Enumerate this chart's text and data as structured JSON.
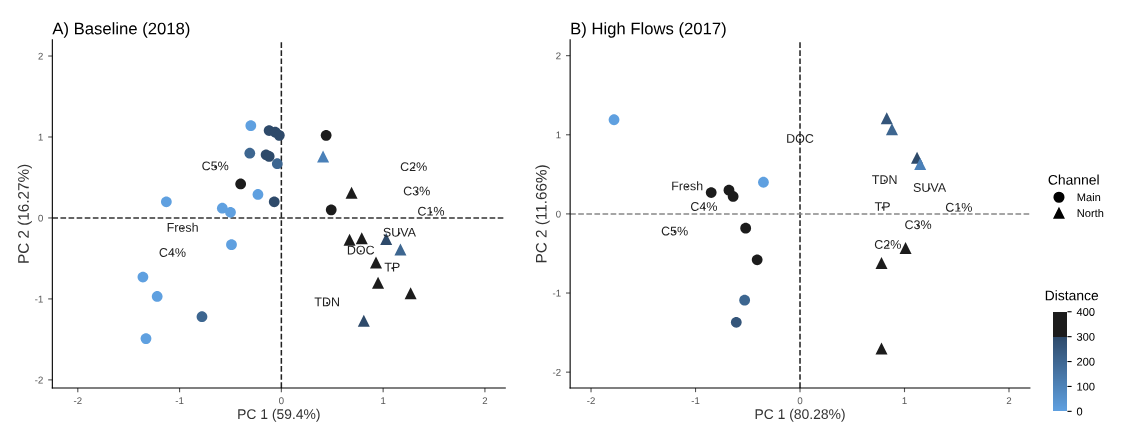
{
  "chart_data": [
    {
      "type": "scatter",
      "title": "A) Baseline (2018)",
      "xlabel": "PC 1 (59.4%)",
      "ylabel": "PC 2 (16.27%)",
      "xlim": [
        -2.25,
        2.2
      ],
      "ylim": [
        -2.1,
        2.2
      ],
      "xticks": [
        -2,
        -1,
        0,
        1,
        2
      ],
      "yticks": [
        -2,
        -1,
        0,
        1,
        2
      ],
      "grid": false,
      "series": [
        {
          "marker": "circle",
          "x": [
            -0.3,
            -0.12,
            -0.06,
            -0.02,
            -0.31,
            -0.15,
            -0.12,
            -0.04,
            -0.4,
            -0.23,
            -0.07,
            -1.13,
            -0.58,
            -0.5,
            -0.49,
            -1.36,
            -1.22,
            -0.78,
            -1.33,
            0.44,
            0.49
          ],
          "values": [
            1.14,
            1.08,
            1.06,
            1.02,
            0.8,
            0.78,
            0.76,
            0.67,
            0.42,
            0.29,
            0.2,
            0.2,
            0.12,
            0.07,
            -0.33,
            -0.73,
            -0.97,
            -1.22,
            -1.49,
            1.02,
            0.1
          ],
          "colors": [
            "#5fa0e0",
            "#2e4a6a",
            "#2e4a6a",
            "#2e4a6a",
            "#3d6690",
            "#2e4a6a",
            "#2e4a6a",
            "#3d6690",
            "#1c1c1c",
            "#5fa0e0",
            "#2e4a6a",
            "#5fa0e0",
            "#5fa0e0",
            "#5fa0e0",
            "#5fa0e0",
            "#5fa0e0",
            "#5fa0e0",
            "#3d6690",
            "#5fa0e0",
            "#1c1c1c",
            "#1c1c1c"
          ]
        },
        {
          "marker": "triangle",
          "x": [
            0.41,
            0.69,
            0.67,
            0.79,
            1.03,
            1.17,
            0.93,
            0.95,
            1.27,
            0.81
          ],
          "values": [
            0.76,
            0.31,
            -0.27,
            -0.25,
            -0.26,
            -0.39,
            -0.55,
            -0.8,
            -0.93,
            -1.27
          ],
          "colors": [
            "#4a80b8",
            "#1c1c1c",
            "#1c1c1c",
            "#1c1c1c",
            "#2e4a6a",
            "#3d6690",
            "#1c1c1c",
            "#1c1c1c",
            "#1c1c1c",
            "#2e4a6a"
          ]
        },
        {
          "marker": "none",
          "x": [
            -0.65,
            1.3,
            1.33,
            1.47,
            -0.97,
            1.16,
            -1.07,
            0.78,
            1.09,
            0.45
          ],
          "values": [
            0.63,
            0.62,
            0.32,
            0.07,
            -0.13,
            -0.19,
            -0.44,
            -0.41,
            -0.62,
            -1.05
          ],
          "value_labels": [
            "C5%",
            "C2%",
            "C3%",
            "C1%",
            "Fresh",
            "SUVA",
            "C4%",
            "DOC",
            "TP",
            "TDN"
          ]
        }
      ],
      "ref_lines": [
        {
          "axis": "x",
          "value": 0,
          "color": "#222222",
          "line_style": "dashed"
        },
        {
          "axis": "y",
          "value": 0,
          "color": "#333333",
          "line_style": "dashed"
        }
      ]
    },
    {
      "type": "scatter",
      "title": "B) High Flows (2017)",
      "xlabel": "PC 1 (80.28%)",
      "ylabel": "PC 2 (11.66%)",
      "xlim": [
        -2.2,
        2.2
      ],
      "ylim": [
        -2.2,
        2.2
      ],
      "xticks": [
        -2,
        -1,
        0,
        1,
        2
      ],
      "yticks": [
        -2,
        -1,
        0,
        1,
        2
      ],
      "grid": false,
      "clim": [
        0,
        400
      ],
      "cticks": [
        0,
        100,
        200,
        300,
        400
      ],
      "clabel": "Distance",
      "legend": "right",
      "legend_title": "Channel",
      "series": [
        {
          "name": "Main",
          "marker": "circle",
          "x": [
            -1.78,
            -0.35,
            -0.85,
            -0.68,
            -0.64,
            -0.52,
            -0.41,
            -0.53,
            -0.61
          ],
          "values": [
            1.19,
            0.4,
            0.27,
            0.3,
            0.22,
            -0.18,
            -0.58,
            -1.09,
            -1.37
          ],
          "colors": [
            "#5fa0e0",
            "#5fa0e0",
            "#1c1c1c",
            "#1c1c1c",
            "#1c1c1c",
            "#1c1c1c",
            "#1c1c1c",
            "#3d6690",
            "#34557a"
          ]
        },
        {
          "name": "North",
          "marker": "triangle",
          "x": [
            0.83,
            0.88,
            1.12,
            1.15,
            1.01,
            0.78,
            0.78
          ],
          "values": [
            1.21,
            1.07,
            0.71,
            0.63,
            -0.43,
            -0.62,
            -1.7
          ],
          "colors": [
            "#34557a",
            "#3d6690",
            "#2e4a6a",
            "#4a80b8",
            "#1c1c1c",
            "#1c1c1c",
            "#1c1c1c"
          ]
        },
        {
          "marker": "none",
          "x": [
            0.0,
            0.81,
            1.24,
            0.79,
            1.52,
            1.13,
            0.84,
            -1.08,
            -0.92,
            -1.2
          ],
          "values": [
            0.94,
            0.42,
            0.32,
            0.08,
            0.07,
            -0.15,
            -0.4,
            0.34,
            0.08,
            -0.23
          ],
          "value_labels": [
            "DOC",
            "TDN",
            "SUVA",
            "TP",
            "C1%",
            "C3%",
            "C2%",
            "Fresh",
            "C4%",
            "C5%"
          ]
        }
      ],
      "ref_lines": [
        {
          "axis": "x",
          "value": 0,
          "color": "#222222",
          "line_style": "dashed"
        },
        {
          "axis": "y",
          "value": 0,
          "color": "#888888",
          "line_style": "dashed"
        }
      ]
    }
  ]
}
